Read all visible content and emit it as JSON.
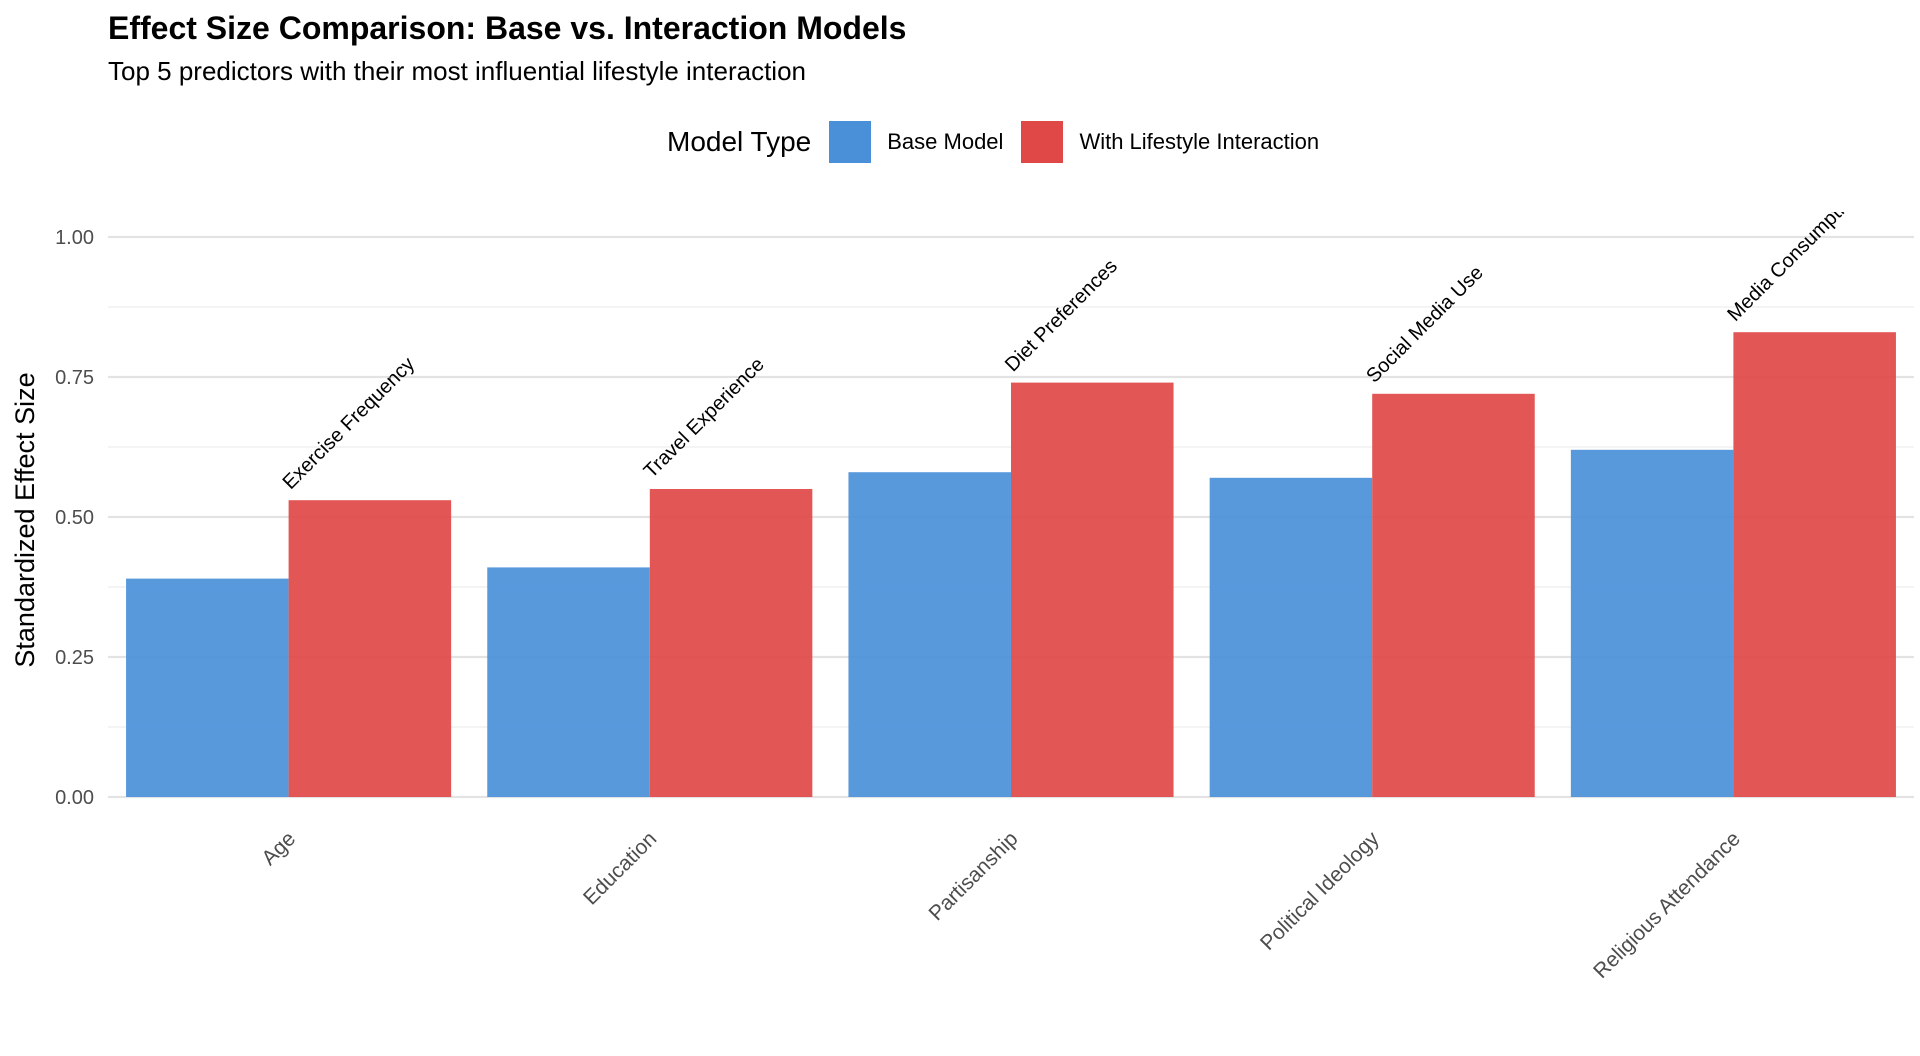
{
  "chart_data": {
    "type": "bar",
    "title": "Effect Size Comparison: Base vs. Interaction Models",
    "subtitle": "Top 5 predictors with their most influential lifestyle interaction",
    "xlabel": "",
    "ylabel": "Standardized Effect Size",
    "ylim": [
      0,
      1
    ],
    "yticks": [
      "0.00",
      "0.25",
      "0.50",
      "0.75",
      "1.00"
    ],
    "grid": true,
    "legend": {
      "title": "Model Type",
      "position": "top"
    },
    "categories": [
      "Age",
      "Education",
      "Partisanship",
      "Political Ideology",
      "Religious Attendance"
    ],
    "series": [
      {
        "name": "Base Model",
        "color": "#4a90d9",
        "values": [
          0.39,
          0.41,
          0.58,
          0.57,
          0.62
        ]
      },
      {
        "name": "With Lifestyle Interaction",
        "color": "#e04848",
        "values": [
          0.53,
          0.55,
          0.74,
          0.72,
          0.83
        ]
      }
    ],
    "annotations": [
      "Exercise Frequency",
      "Travel Experience",
      "Diet Preferences",
      "Social Media Use",
      "Media Consumption"
    ]
  }
}
